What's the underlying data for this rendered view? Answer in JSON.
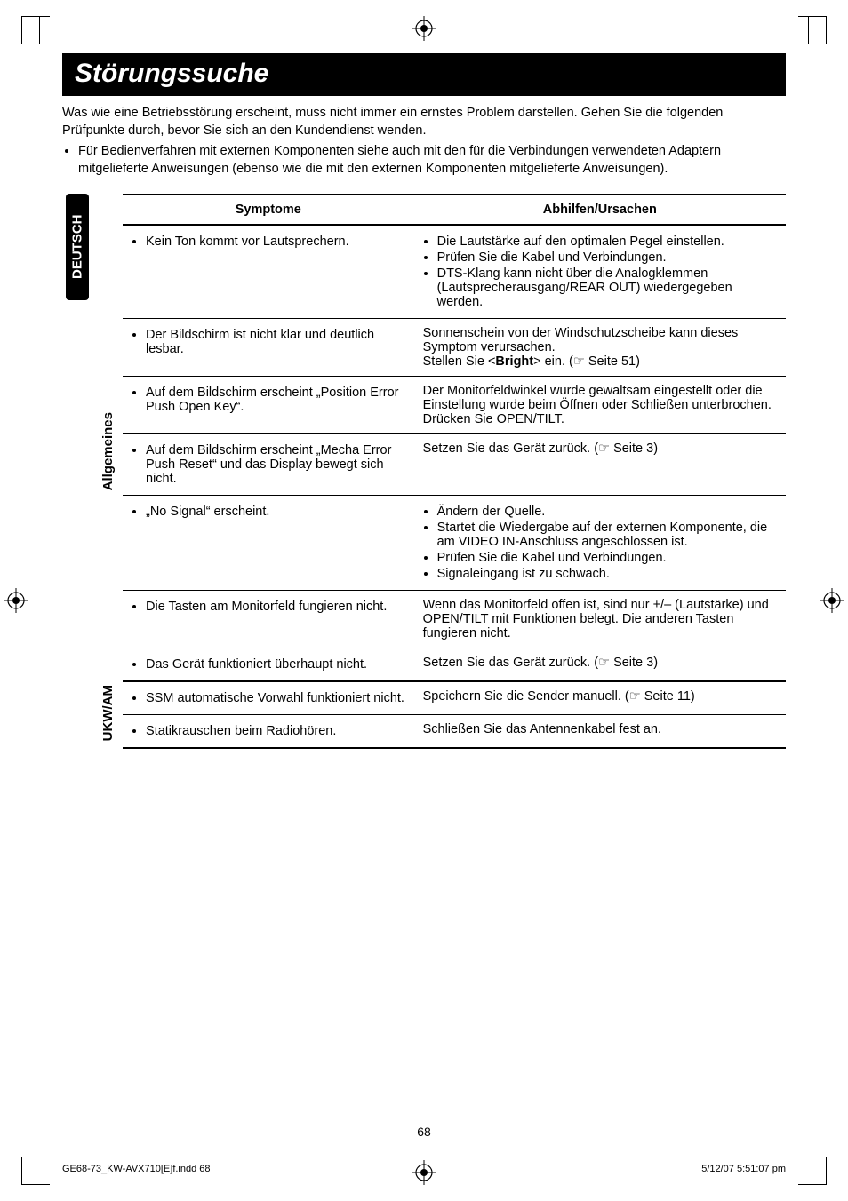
{
  "page": {
    "title": "Störungssuche",
    "language_tab": "DEUTSCH",
    "intro_para": "Was wie eine Betriebsstörung erscheint, muss nicht immer ein ernstes Problem darstellen. Gehen Sie die folgenden Prüfpunkte durch, bevor Sie sich an den Kundendienst wenden.",
    "intro_bullet": "Für Bedienverfahren mit externen Komponenten siehe auch mit den für die Verbindungen verwendeten Adaptern mitgelieferte Anweisungen (ebenso wie die mit den externen Komponenten mitgelieferte Anweisungen).",
    "page_number": "68",
    "footer_left": "GE68-73_KW-AVX710[E]f.indd   68",
    "footer_right": "5/12/07   5:51:07 pm"
  },
  "table": {
    "header_left": "Symptome",
    "header_right": "Abhilfen/Ursachen",
    "groups": [
      {
        "label": "Allgemeines",
        "rows": [
          {
            "symptom_items": [
              "Kein Ton kommt vor Lautsprechern."
            ],
            "remedy_items": [
              "Die Lautstärke auf den optimalen Pegel einstellen.",
              "Prüfen Sie die Kabel und Verbindungen.",
              "DTS-Klang kann nicht über die Analogklemmen (Lautsprecherausgang/REAR OUT) wiedergegeben werden."
            ]
          },
          {
            "symptom_items": [
              "Der Bildschirm ist nicht klar und deutlich lesbar."
            ],
            "remedy_text": "Sonnenschein von der Windschutzscheibe kann dieses Symptom verursachen.\nStellen Sie <Bright> ein. (☞ Seite 51)"
          },
          {
            "symptom_items": [
              "Auf dem Bildschirm erscheint „Position Error Push Open Key“."
            ],
            "remedy_text": "Der Monitorfeldwinkel wurde gewaltsam eingestellt oder die Einstellung wurde beim Öffnen oder Schließen unterbrochen. Drücken Sie OPEN/TILT."
          },
          {
            "symptom_items": [
              "Auf dem Bildschirm erscheint „Mecha Error Push Reset“ und das Display bewegt sich nicht."
            ],
            "remedy_text": "Setzen Sie das Gerät zurück. (☞ Seite 3)"
          },
          {
            "symptom_items": [
              "„No Signal“ erscheint."
            ],
            "remedy_items": [
              "Ändern der Quelle.",
              "Startet die Wiedergabe auf der externen Komponente, die am VIDEO IN-Anschluss angeschlossen ist.",
              "Prüfen Sie die Kabel und Verbindungen.",
              "Signaleingang ist zu schwach."
            ]
          },
          {
            "symptom_items": [
              "Die Tasten am Monitorfeld fungieren nicht."
            ],
            "remedy_text": "Wenn das Monitorfeld offen ist, sind nur +/– (Lautstärke) und OPEN/TILT mit Funktionen belegt. Die anderen Tasten fungieren nicht."
          },
          {
            "symptom_items": [
              "Das Gerät funktioniert überhaupt nicht."
            ],
            "remedy_text": "Setzen Sie das Gerät zurück. (☞ Seite 3)"
          }
        ]
      },
      {
        "label": "UKW/AM",
        "rows": [
          {
            "symptom_items": [
              "SSM automatische Vorwahl funktioniert nicht."
            ],
            "remedy_text": "Speichern Sie die Sender manuell. (☞ Seite 11)"
          },
          {
            "symptom_items": [
              "Statikrauschen beim Radiohören."
            ],
            "remedy_text": "Schließen Sie das Antennenkabel fest an."
          }
        ]
      }
    ]
  }
}
